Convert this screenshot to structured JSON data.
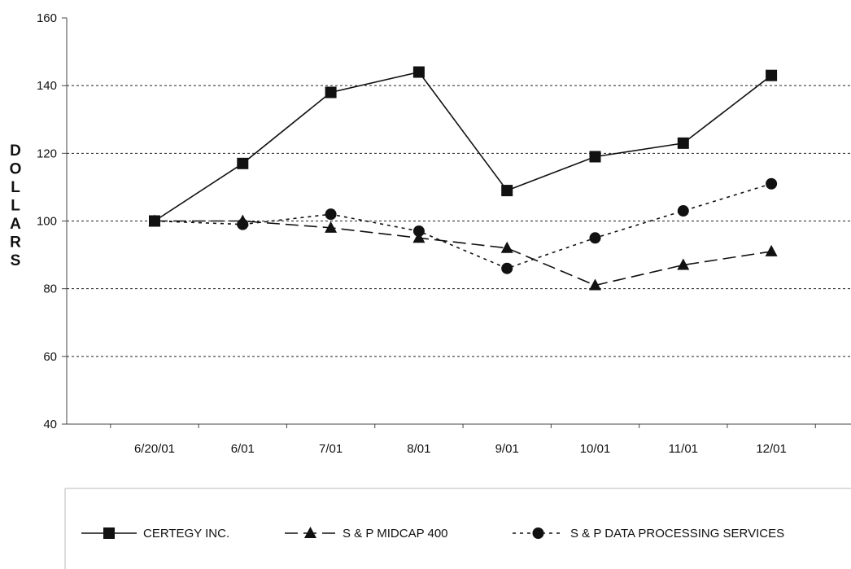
{
  "chart_data": {
    "type": "line",
    "title": "",
    "xlabel": "",
    "ylabel": "DOLLARS",
    "categories": [
      "6/20/01",
      "6/01",
      "7/01",
      "8/01",
      "9/01",
      "10/01",
      "11/01",
      "12/01"
    ],
    "ylim": [
      40,
      160
    ],
    "yticks": [
      40,
      60,
      80,
      100,
      120,
      140,
      160
    ],
    "grid": "horizontal dashed",
    "legend_position": "bottom",
    "series": [
      {
        "name": "CERTEGY INC.",
        "marker": "square",
        "line_style": "solid",
        "values": [
          100,
          117,
          138,
          144,
          109,
          119,
          123,
          143
        ]
      },
      {
        "name": "S & P MIDCAP 400",
        "marker": "triangle",
        "line_style": "long-dash",
        "values": [
          100,
          100,
          98,
          95,
          92,
          81,
          87,
          91
        ]
      },
      {
        "name": "S & P DATA PROCESSING SERVICES",
        "marker": "circle",
        "line_style": "dotted",
        "values": [
          100,
          99,
          102,
          97,
          86,
          95,
          103,
          111
        ]
      }
    ]
  }
}
